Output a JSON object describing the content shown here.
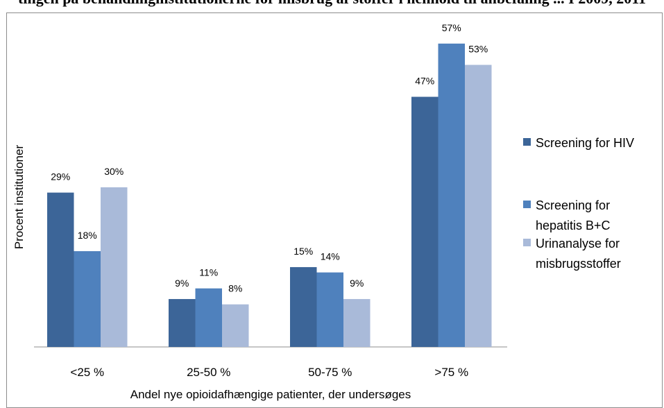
{
  "header_cut_text": "tingen på behandlinginstitutionerne for misbrug af stoffer i henhold til anbefaling ... I 2009, 2011",
  "chart_data": {
    "type": "bar",
    "title": "",
    "xlabel": "Andel nye opioidafhængige patienter, der undersøges",
    "ylabel": "Procent institutioner",
    "categories": [
      "<25 %",
      "25-50 %",
      "50-75 %",
      ">75 %"
    ],
    "ylim": [
      0,
      60
    ],
    "grid": false,
    "legend_position": "right",
    "series": [
      {
        "name": "Screening for HIV",
        "values": [
          29,
          9,
          15,
          47
        ],
        "labels": [
          "29%",
          "9%",
          "15%",
          "47%"
        ],
        "color": "#3c6598"
      },
      {
        "name": "Screening for hepatitis B+C",
        "legend_lines": [
          "Screening for",
          "hepatitis B+C"
        ],
        "values": [
          18,
          11,
          14,
          57
        ],
        "labels": [
          "18%",
          "11%",
          "14%",
          "57%"
        ],
        "color": "#4f81bd"
      },
      {
        "name": "Urinanalyse for misbrugsstoffer",
        "legend_lines": [
          "Urinanalyse for",
          "misbrugsstoffer"
        ],
        "values": [
          30,
          8,
          9,
          53
        ],
        "labels": [
          "30%",
          "8%",
          "9%",
          "53%"
        ],
        "color": "#a9bad9"
      }
    ]
  }
}
